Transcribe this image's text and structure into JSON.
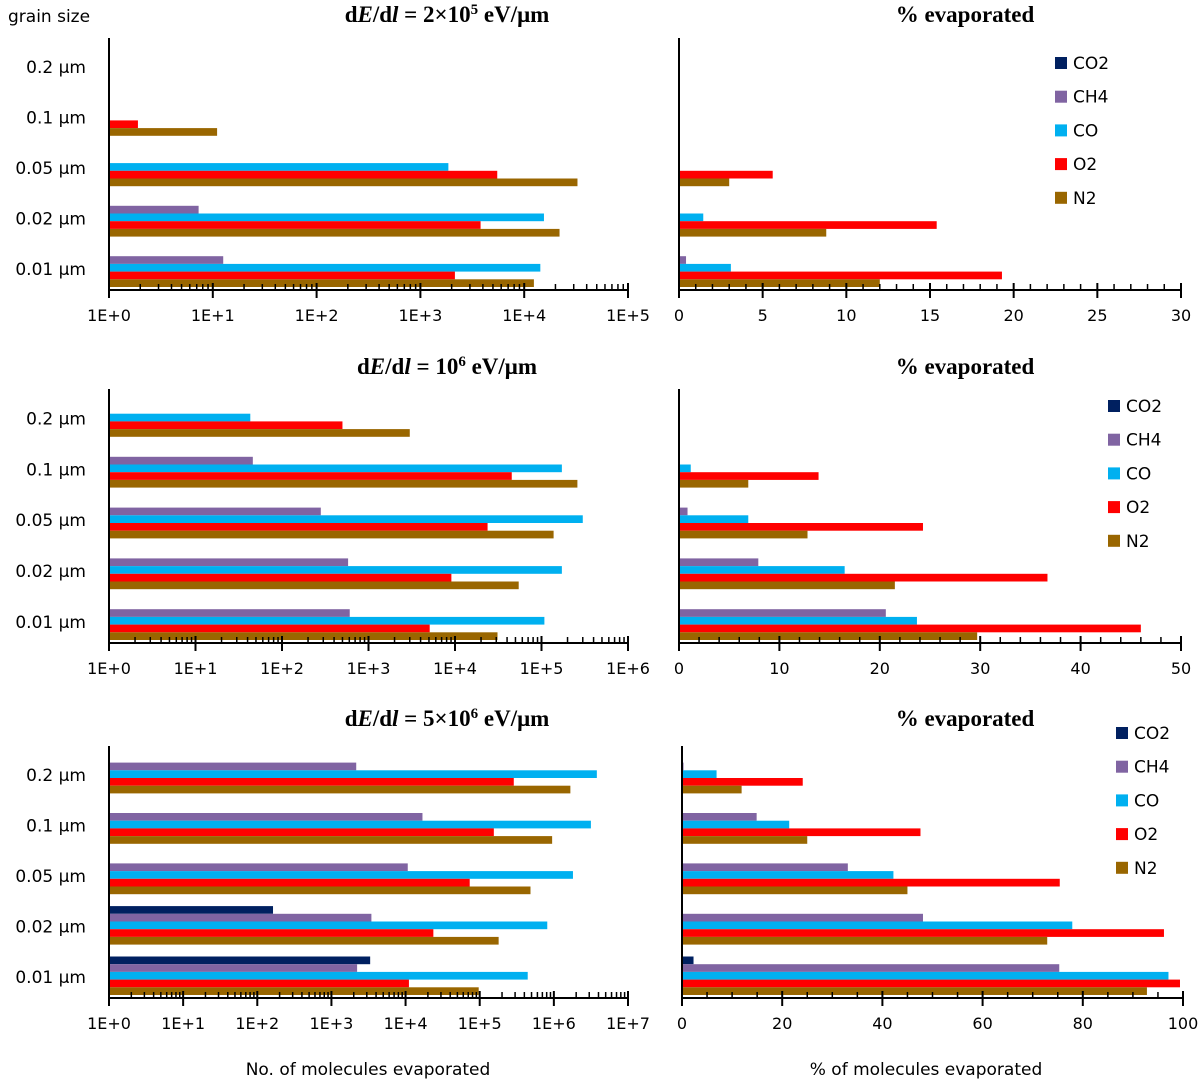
{
  "header": {
    "grain_size_label": "grain size"
  },
  "series_colors": {
    "CO2": "#002060",
    "CH4": "#8064A2",
    "CO": "#00B0F0",
    "O2": "#FF0000",
    "N2": "#996600"
  },
  "legend": [
    "CO2",
    "CH4",
    "CO",
    "O2",
    "N2"
  ],
  "xlabels": {
    "left": "No. of molecules evaporated",
    "right": "% of molecules evaporated"
  },
  "chart_data": [
    {
      "id": "count-2e5",
      "type": "bar",
      "orientation": "horizontal",
      "title_parts": [
        "d",
        "E",
        "/d",
        "l",
        " = 2×10",
        "5",
        " eV/μm"
      ],
      "title": "dE/dl = 2×10^5 eV/μm",
      "xscale": "log",
      "xlim": [
        1,
        100000
      ],
      "xticks": [
        "1E+0",
        "1E+1",
        "1E+2",
        "1E+3",
        "1E+4",
        "1E+5"
      ],
      "categories": [
        "0.2 μm",
        "0.1 μm",
        "0.05 μm",
        "0.02 μm",
        "0.01 μm"
      ],
      "series": [
        {
          "name": "CO2",
          "values": [
            null,
            null,
            null,
            null,
            null
          ]
        },
        {
          "name": "CH4",
          "values": [
            null,
            null,
            null,
            7.3,
            12.6
          ]
        },
        {
          "name": "CO",
          "values": [
            null,
            null,
            1860,
            15500,
            14300
          ]
        },
        {
          "name": "O2",
          "values": [
            null,
            1.9,
            5500,
            3800,
            2150
          ]
        },
        {
          "name": "N2",
          "values": [
            null,
            11,
            32600,
            21900,
            12400
          ]
        }
      ],
      "ylabel": "grain size",
      "xlabel": ""
    },
    {
      "id": "pct-2e5",
      "type": "bar",
      "orientation": "horizontal",
      "title": "% evaporated",
      "xscale": "linear",
      "xlim": [
        0,
        30
      ],
      "xticks": [
        "0",
        "5",
        "10",
        "15",
        "20",
        "25",
        "30"
      ],
      "major_step": 5,
      "minor_step": 1,
      "categories": [
        "0.2 μm",
        "0.1 μm",
        "0.05 μm",
        "0.02 μm",
        "0.01 μm"
      ],
      "series": [
        {
          "name": "CO2",
          "values": [
            null,
            null,
            null,
            null,
            null
          ]
        },
        {
          "name": "CH4",
          "values": [
            null,
            null,
            null,
            0.05,
            0.42
          ]
        },
        {
          "name": "CO",
          "values": [
            null,
            null,
            null,
            1.45,
            3.1
          ]
        },
        {
          "name": "O2",
          "values": [
            null,
            null,
            5.6,
            15.4,
            19.3
          ]
        },
        {
          "name": "N2",
          "values": [
            null,
            null,
            3.0,
            8.8,
            12.0
          ]
        }
      ],
      "legend": "top-right",
      "xlabel": ""
    },
    {
      "id": "count-1e6",
      "type": "bar",
      "orientation": "horizontal",
      "title_parts": [
        "d",
        "E",
        "/d",
        "l",
        " = 10",
        "6",
        " eV/μm"
      ],
      "title": "dE/dl = 10^6 eV/μm",
      "xscale": "log",
      "xlim": [
        1,
        1000000
      ],
      "xticks": [
        "1E+0",
        "1E+1",
        "1E+2",
        "1E+3",
        "1E+4",
        "1E+5",
        "1E+6"
      ],
      "categories": [
        "0.2 μm",
        "0.1 μm",
        "0.05 μm",
        "0.02 μm",
        "0.01 μm"
      ],
      "series": [
        {
          "name": "CO2",
          "values": [
            null,
            null,
            null,
            null,
            null
          ]
        },
        {
          "name": "CH4",
          "values": [
            null,
            46,
            281,
            581,
            607
          ]
        },
        {
          "name": "CO",
          "values": [
            43,
            172000,
            300000,
            172000,
            108000
          ]
        },
        {
          "name": "O2",
          "values": [
            500,
            45300,
            23800,
            9080,
            5100
          ]
        },
        {
          "name": "N2",
          "values": [
            3000,
            260000,
            138000,
            54500,
            31000
          ]
        }
      ],
      "xlabel": ""
    },
    {
      "id": "pct-1e6",
      "type": "bar",
      "orientation": "horizontal",
      "title": "% evaporated",
      "xscale": "linear",
      "xlim": [
        0,
        50
      ],
      "xticks": [
        "0",
        "10",
        "20",
        "30",
        "40",
        "50"
      ],
      "major_step": 10,
      "minor_step": 2,
      "categories": [
        "0.2 μm",
        "0.1 μm",
        "0.05 μm",
        "0.02 μm",
        "0.01 μm"
      ],
      "series": [
        {
          "name": "CO2",
          "values": [
            null,
            null,
            null,
            null,
            null
          ]
        },
        {
          "name": "CH4",
          "values": [
            null,
            null,
            0.85,
            7.9,
            20.6
          ]
        },
        {
          "name": "CO",
          "values": [
            null,
            1.17,
            6.9,
            16.5,
            23.7
          ]
        },
        {
          "name": "O2",
          "values": [
            null,
            13.9,
            24.3,
            36.7,
            46.0
          ]
        },
        {
          "name": "N2",
          "values": [
            null,
            6.9,
            12.8,
            21.5,
            29.7
          ]
        }
      ],
      "legend": "top-right",
      "xlabel": ""
    },
    {
      "id": "count-5e6",
      "type": "bar",
      "orientation": "horizontal",
      "title_parts": [
        "d",
        "E",
        "/d",
        "l",
        " = 5×10",
        "6",
        " eV/μm"
      ],
      "title": "dE/dl = 5×10^6 eV/μm",
      "xscale": "log",
      "xlim": [
        1,
        10000000
      ],
      "xticks": [
        "1E+0",
        "1E+1",
        "1E+2",
        "1E+3",
        "1E+4",
        "1E+5",
        "1E+6",
        "1E+7"
      ],
      "categories": [
        "0.2 μm",
        "0.1 μm",
        "0.05 μm",
        "0.02 μm",
        "0.01 μm"
      ],
      "series": [
        {
          "name": "CO2",
          "values": [
            null,
            null,
            null,
            163,
            3330
          ]
        },
        {
          "name": "CH4",
          "values": [
            2160,
            16900,
            10700,
            3460,
            2220
          ]
        },
        {
          "name": "CO",
          "values": [
            3800000,
            3160000,
            1810000,
            815000,
            444000
          ]
        },
        {
          "name": "O2",
          "values": [
            288000,
            155000,
            73300,
            23700,
            11100
          ]
        },
        {
          "name": "N2",
          "values": [
            1670000,
            948000,
            484000,
            180000,
            96900
          ]
        }
      ],
      "xlabel": "No. of molecules evaporated"
    },
    {
      "id": "pct-5e6",
      "type": "bar",
      "orientation": "horizontal",
      "title": "% evaporated",
      "xscale": "linear",
      "xlim": [
        0,
        100
      ],
      "xticks": [
        "0",
        "20",
        "40",
        "60",
        "80",
        "100"
      ],
      "major_step": 20,
      "minor_step": 5,
      "categories": [
        "0.2 μm",
        "0.1 μm",
        "0.05 μm",
        "0.02 μm",
        "0.01 μm"
      ],
      "series": [
        {
          "name": "CO2",
          "values": [
            null,
            null,
            null,
            null,
            2.3
          ]
        },
        {
          "name": "CH4",
          "values": [
            0.3,
            14.9,
            33.1,
            48.1,
            75.3
          ]
        },
        {
          "name": "CO",
          "values": [
            6.9,
            21.4,
            42.2,
            77.9,
            97.1
          ]
        },
        {
          "name": "O2",
          "values": [
            24.1,
            47.6,
            75.4,
            96.2,
            99.4
          ]
        },
        {
          "name": "N2",
          "values": [
            11.9,
            25.0,
            45.0,
            72.9,
            92.8
          ]
        }
      ],
      "legend": "top-right",
      "xlabel": "% of molecules evaporated"
    }
  ]
}
